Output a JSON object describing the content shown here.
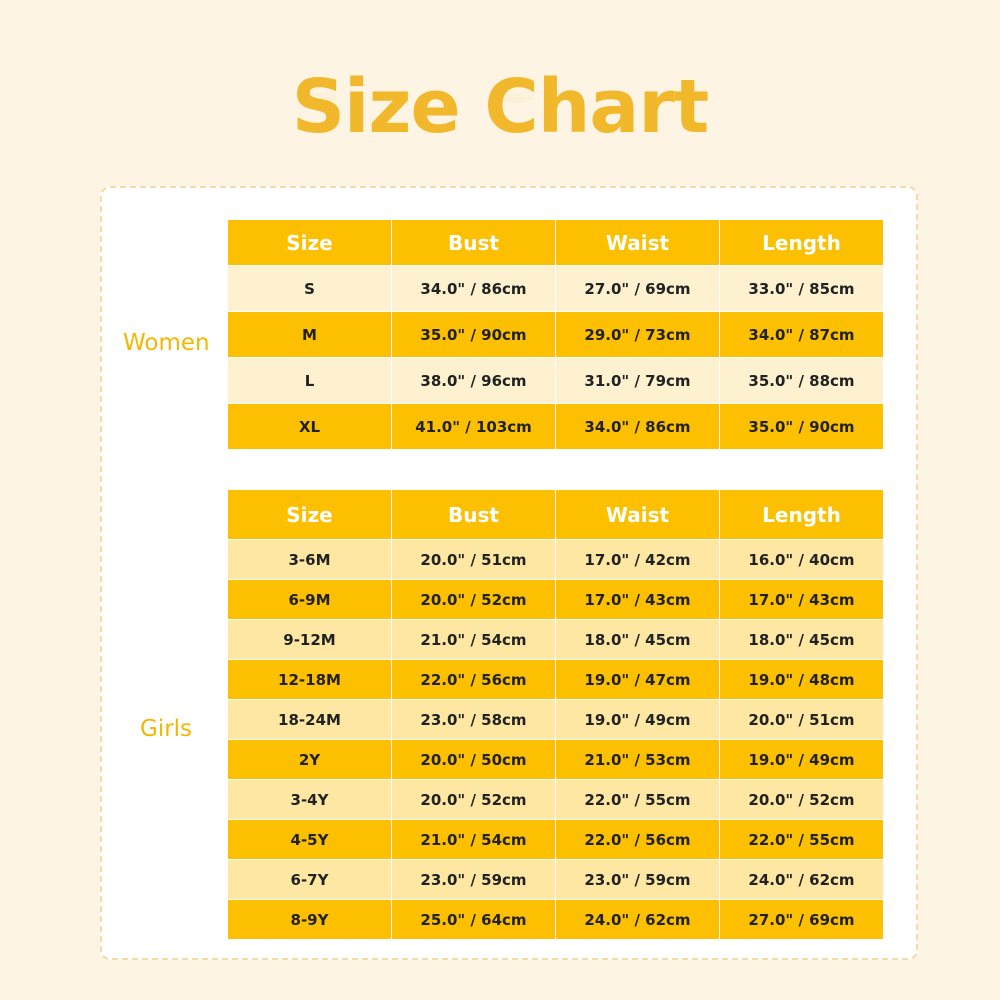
{
  "title": "Size Chart",
  "colors": {
    "accent": "#fcc000",
    "title": "#f1b82b",
    "row_light_women": "#fdf1cf",
    "row_light_girls": "#fde7a2"
  },
  "women": {
    "label": "Women",
    "headers": [
      "Size",
      "Bust",
      "Waist",
      "Length"
    ],
    "rows": [
      [
        "S",
        "34.0\" / 86cm",
        "27.0\" / 69cm",
        "33.0\" / 85cm"
      ],
      [
        "M",
        "35.0\" / 90cm",
        "29.0\" / 73cm",
        "34.0\" / 87cm"
      ],
      [
        "L",
        "38.0\" / 96cm",
        "31.0\" / 79cm",
        "35.0\" / 88cm"
      ],
      [
        "XL",
        "41.0\" / 103cm",
        "34.0\" / 86cm",
        "35.0\" / 90cm"
      ]
    ]
  },
  "girls": {
    "label": "Girls",
    "headers": [
      "Size",
      "Bust",
      "Waist",
      "Length"
    ],
    "rows": [
      [
        "3-6M",
        "20.0\" / 51cm",
        "17.0\" / 42cm",
        "16.0\" / 40cm"
      ],
      [
        "6-9M",
        "20.0\" / 52cm",
        "17.0\" / 43cm",
        "17.0\" / 43cm"
      ],
      [
        "9-12M",
        "21.0\" / 54cm",
        "18.0\" / 45cm",
        "18.0\" / 45cm"
      ],
      [
        "12-18M",
        "22.0\" / 56cm",
        "19.0\" / 47cm",
        "19.0\" / 48cm"
      ],
      [
        "18-24M",
        "23.0\" / 58cm",
        "19.0\" / 49cm",
        "20.0\" / 51cm"
      ],
      [
        "2Y",
        "20.0\" / 50cm",
        "21.0\" / 53cm",
        "19.0\" / 49cm"
      ],
      [
        "3-4Y",
        "20.0\" / 52cm",
        "22.0\" / 55cm",
        "20.0\" / 52cm"
      ],
      [
        "4-5Y",
        "21.0\" / 54cm",
        "22.0\" / 56cm",
        "22.0\" / 55cm"
      ],
      [
        "6-7Y",
        "23.0\" / 59cm",
        "23.0\" / 59cm",
        "24.0\" / 62cm"
      ],
      [
        "8-9Y",
        "25.0\" / 64cm",
        "24.0\" / 62cm",
        "27.0\" / 69cm"
      ]
    ]
  }
}
